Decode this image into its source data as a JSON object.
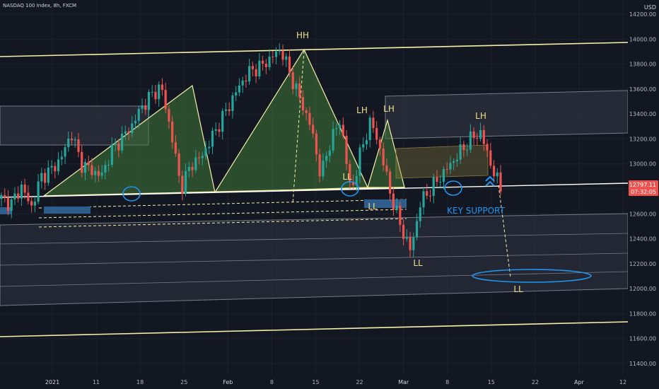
{
  "header": {
    "symbol": "NASDAQ 100 Index, 8h, FXCM"
  },
  "price_axis": {
    "currency": "USD",
    "ticks": [
      "14200.00",
      "14000.00",
      "13800.00",
      "13600.00",
      "13400.00",
      "13200.00",
      "13000.00",
      "12800.00",
      "12600.00",
      "12400.00",
      "12200.00",
      "12000.00",
      "11800.00",
      "11600.00",
      "11400.00"
    ]
  },
  "time_axis": {
    "ticks": [
      "2021",
      "11",
      "18",
      "25",
      "Feb",
      "8",
      "15",
      "22",
      "Mar",
      "8",
      "15",
      "22",
      "Apr",
      "12"
    ]
  },
  "price_badge": {
    "price": "12797.11",
    "countdown": "07:32:05"
  },
  "annotations": {
    "hh": "HH",
    "lh1": "LH",
    "lh2": "LH",
    "lh3": "LH",
    "ll1": "LL",
    "ll2": "LL",
    "ll3": "LL",
    "ll4": "LL",
    "key_support": "KEY SUPPORT"
  },
  "colors": {
    "background": "#131722",
    "bullish": "#26a69a",
    "bearish": "#ef5350",
    "trendline": "#f5f0a8",
    "support_line": "#ffffff",
    "channel_fill": "#2a2e39",
    "triangle_fill": "#4c8a3e",
    "ellipse": "#2196f3",
    "badge": "#ef5350"
  },
  "chart_data": {
    "type": "candlestick",
    "title": "NASDAQ 100 Index, 8h, FXCM",
    "ylabel": "USD",
    "ylim": [
      11300,
      14250
    ],
    "x_ticks": [
      "2021",
      "11",
      "18",
      "25",
      "Feb",
      "8",
      "15",
      "22",
      "Mar",
      "8",
      "15",
      "22",
      "Apr",
      "12"
    ],
    "key_levels": {
      "key_support": 12790,
      "upper_trendline_start": 13880,
      "upper_trendline_end": 13990,
      "lower_trendline_start": 11570,
      "lower_trendline_end": 11680,
      "target_ll": 12080
    },
    "swings": [
      {
        "label": "HH",
        "value": 13920
      },
      {
        "label": "LH",
        "value": 13330
      },
      {
        "label": "LH",
        "value": 13380
      },
      {
        "label": "LH",
        "value": 13280
      },
      {
        "label": "LL",
        "value": 12730
      },
      {
        "label": "LL",
        "value": 12730
      },
      {
        "label": "LL",
        "value": 12240
      },
      {
        "label": "LL",
        "value": 12080
      }
    ],
    "close_path": [
      12720,
      12680,
      12820,
      12650,
      12900,
      12950,
      13050,
      13250,
      13000,
      12950,
      12900,
      13100,
      13200,
      13300,
      13450,
      13550,
      13620,
      13250,
      12800,
      13000,
      13050,
      13200,
      13350,
      13500,
      13650,
      13750,
      13780,
      13850,
      13920,
      13700,
      13500,
      13300,
      12900,
      13200,
      13350,
      12760,
      13100,
      13350,
      13100,
      12750,
      12500,
      12300,
      12700,
      12800,
      12900,
      13000,
      13100,
      13200,
      13250,
      13000,
      12800
    ],
    "price_now": 12797.11
  }
}
